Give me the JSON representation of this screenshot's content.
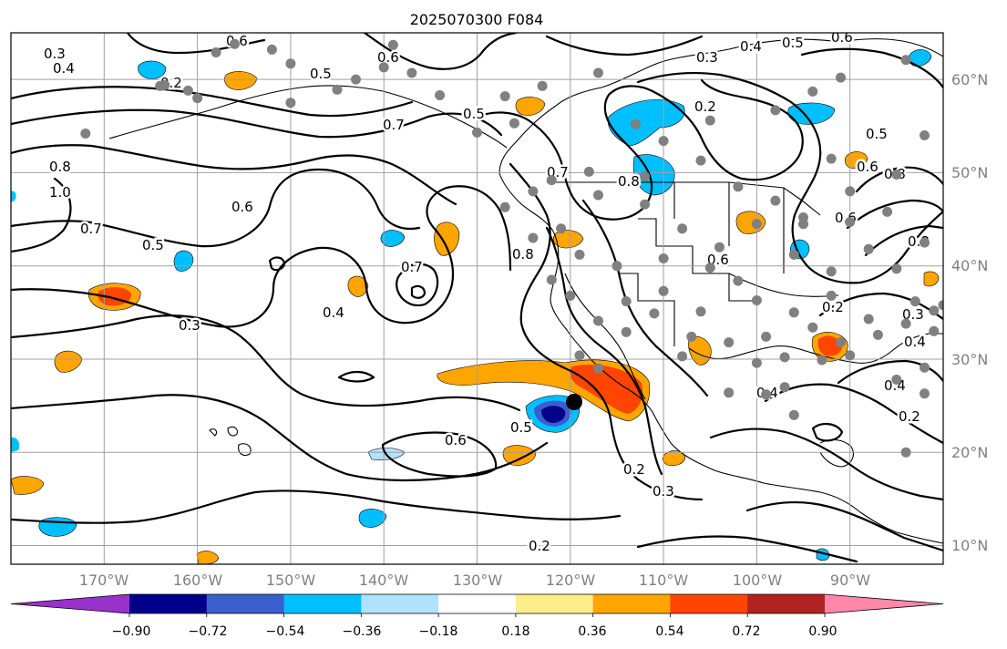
{
  "title": "2025070300 F084",
  "map": {
    "lon_range": [
      -180,
      -80
    ],
    "lat_range": [
      8,
      65
    ],
    "lon_ticks": [
      "170°W",
      "160°W",
      "150°W",
      "140°W",
      "130°W",
      "120°W",
      "110°W",
      "100°W",
      "90°W"
    ],
    "lat_ticks": [
      "60°N",
      "50°N",
      "40°N",
      "30°N",
      "20°N",
      "10°N"
    ],
    "grid": true,
    "contour_labels": [
      "0.3",
      "0.4",
      "0.2",
      "0.6",
      "0.5",
      "0.6",
      "0.3",
      "0.4",
      "0.5",
      "0.6",
      "0.5",
      "0.7",
      "0.8",
      "1.0",
      "0.7",
      "0.6",
      "0.5",
      "0.7",
      "0.7",
      "0.8",
      "0.8",
      "0.2",
      "0.4",
      "0.3",
      "0.6",
      "0.5",
      "0.6",
      "0.2",
      "0.3",
      "0.2",
      "0.8",
      "0.6",
      "0.6",
      "0.5",
      "0.8",
      "0.4",
      "0.2",
      "0.4",
      "0.3",
      "0.2",
      "0.4"
    ],
    "station_marker_color": "#808080",
    "highlight_marker_color": "#000000"
  },
  "colorbar": {
    "levels": [
      "−0.90",
      "−0.72",
      "−0.54",
      "−0.36",
      "−0.18",
      "0.18",
      "0.36",
      "0.54",
      "0.72",
      "0.90"
    ],
    "colors": [
      "#9932cc",
      "#00008b",
      "#3a5fcd",
      "#00bfff",
      "#b0e2ff",
      "#ffffff",
      "#ffec8b",
      "#ffa500",
      "#ff4500",
      "#b22222",
      "#ff88aa"
    ],
    "extend": "both"
  }
}
